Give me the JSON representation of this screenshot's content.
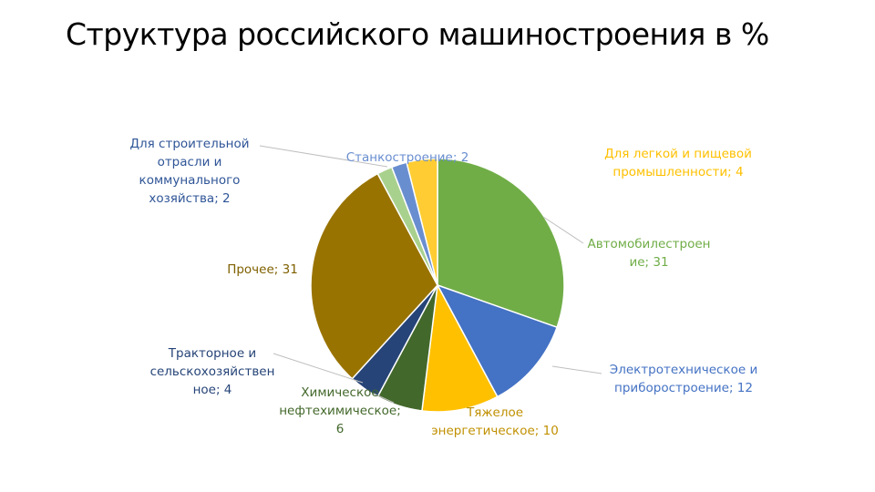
{
  "title": "Структура российского машиностроения в %",
  "chart_data": {
    "type": "pie",
    "title": "Структура российского машиностроения в %",
    "slices": [
      {
        "name": "Автомобилестроение",
        "label_lines": [
          "Автомобилестроен",
          "ие; 31"
        ],
        "value": 31,
        "color": "#70AD47",
        "label_color": "#70AD47"
      },
      {
        "name": "Электротехническое и приборостроение",
        "label_lines": [
          "Электротехническое и",
          "приборостроение; 12"
        ],
        "value": 12,
        "color": "#4472C4",
        "label_color": "#4472C4"
      },
      {
        "name": "Тяжелое энергетическое",
        "label_lines": [
          "Тяжелое",
          "энергетическое; 10"
        ],
        "value": 10,
        "color": "#FFC000",
        "label_color": "#C09000"
      },
      {
        "name": "Химическое нефтехимическое",
        "label_lines": [
          "Химическое",
          "нефтехимическое;",
          "6"
        ],
        "value": 6,
        "color": "#43682B",
        "label_color": "#43682B"
      },
      {
        "name": "Тракторное и сельскохозяйственное",
        "label_lines": [
          "Тракторное и",
          "сельскохозяйствен",
          "ное; 4"
        ],
        "value": 4,
        "color": "#264478",
        "label_color": "#264478"
      },
      {
        "name": "Прочее",
        "label_lines": [
          "Прочее; 31"
        ],
        "value": 31,
        "color": "#997300",
        "label_color": "#7F6000"
      },
      {
        "name": "Для строительной отрасли и коммунального хозяйства",
        "label_lines": [
          "Для строительной",
          "отрасли и",
          "коммунального",
          "хозяйства; 2"
        ],
        "value": 2,
        "color": "#A9D18E",
        "label_color": "#2F5597"
      },
      {
        "name": "Станкостроение",
        "label_lines": [
          "Станкостроение; 2"
        ],
        "value": 2,
        "color": "#698ED0",
        "label_color": "#698ED0"
      },
      {
        "name": "Для легкой и пищевой промышленности",
        "label_lines": [
          "Для легкой и пищевой",
          "промышленности; 4"
        ],
        "value": 4,
        "color": "#FFCD33",
        "label_color": "#FFC000"
      }
    ]
  }
}
